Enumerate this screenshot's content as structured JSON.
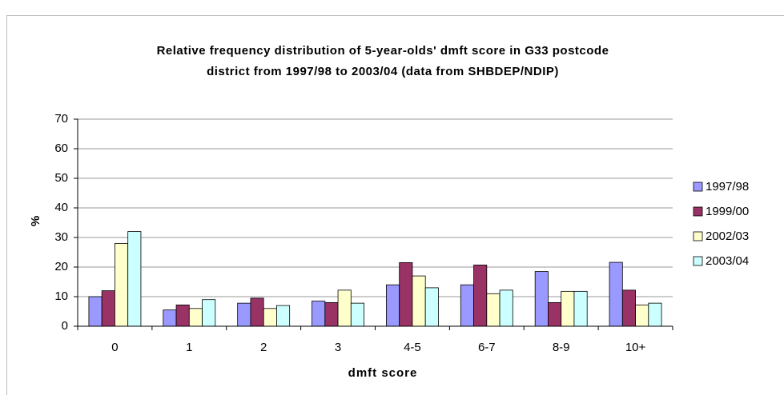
{
  "chart_data": {
    "type": "bar",
    "title": [
      "Relative frequency distribution of 5-year-olds' dmft score in G33 postcode",
      "district from 1997/98 to 2003/04 (data from SHBDEP/NDIP)"
    ],
    "x_label": "dmft score",
    "y_label": "%",
    "categories": [
      "0",
      "1",
      "2",
      "3",
      "4-5",
      "6-7",
      "8-9",
      "10+"
    ],
    "series": [
      {
        "name": "1997/98",
        "color": "#9999ff",
        "values": [
          10,
          5.5,
          7.8,
          8.5,
          14,
          14,
          18.5,
          21.6
        ]
      },
      {
        "name": "1999/00",
        "color": "#993366",
        "values": [
          12,
          7.2,
          9.5,
          8,
          21.5,
          20.7,
          8,
          12.2
        ]
      },
      {
        "name": "2002/03",
        "color": "#ffffcc",
        "values": [
          28,
          6,
          6,
          12.2,
          17,
          11,
          11.8,
          7.2
        ]
      },
      {
        "name": "2003/04",
        "color": "#ccffff",
        "values": [
          32,
          9,
          7,
          7.8,
          13,
          12.2,
          11.8,
          7.8
        ]
      }
    ],
    "ylim": [
      0,
      70
    ],
    "yticks": [
      0,
      10,
      20,
      30,
      40,
      50,
      60,
      70
    ],
    "grid": true,
    "legend": "right"
  }
}
